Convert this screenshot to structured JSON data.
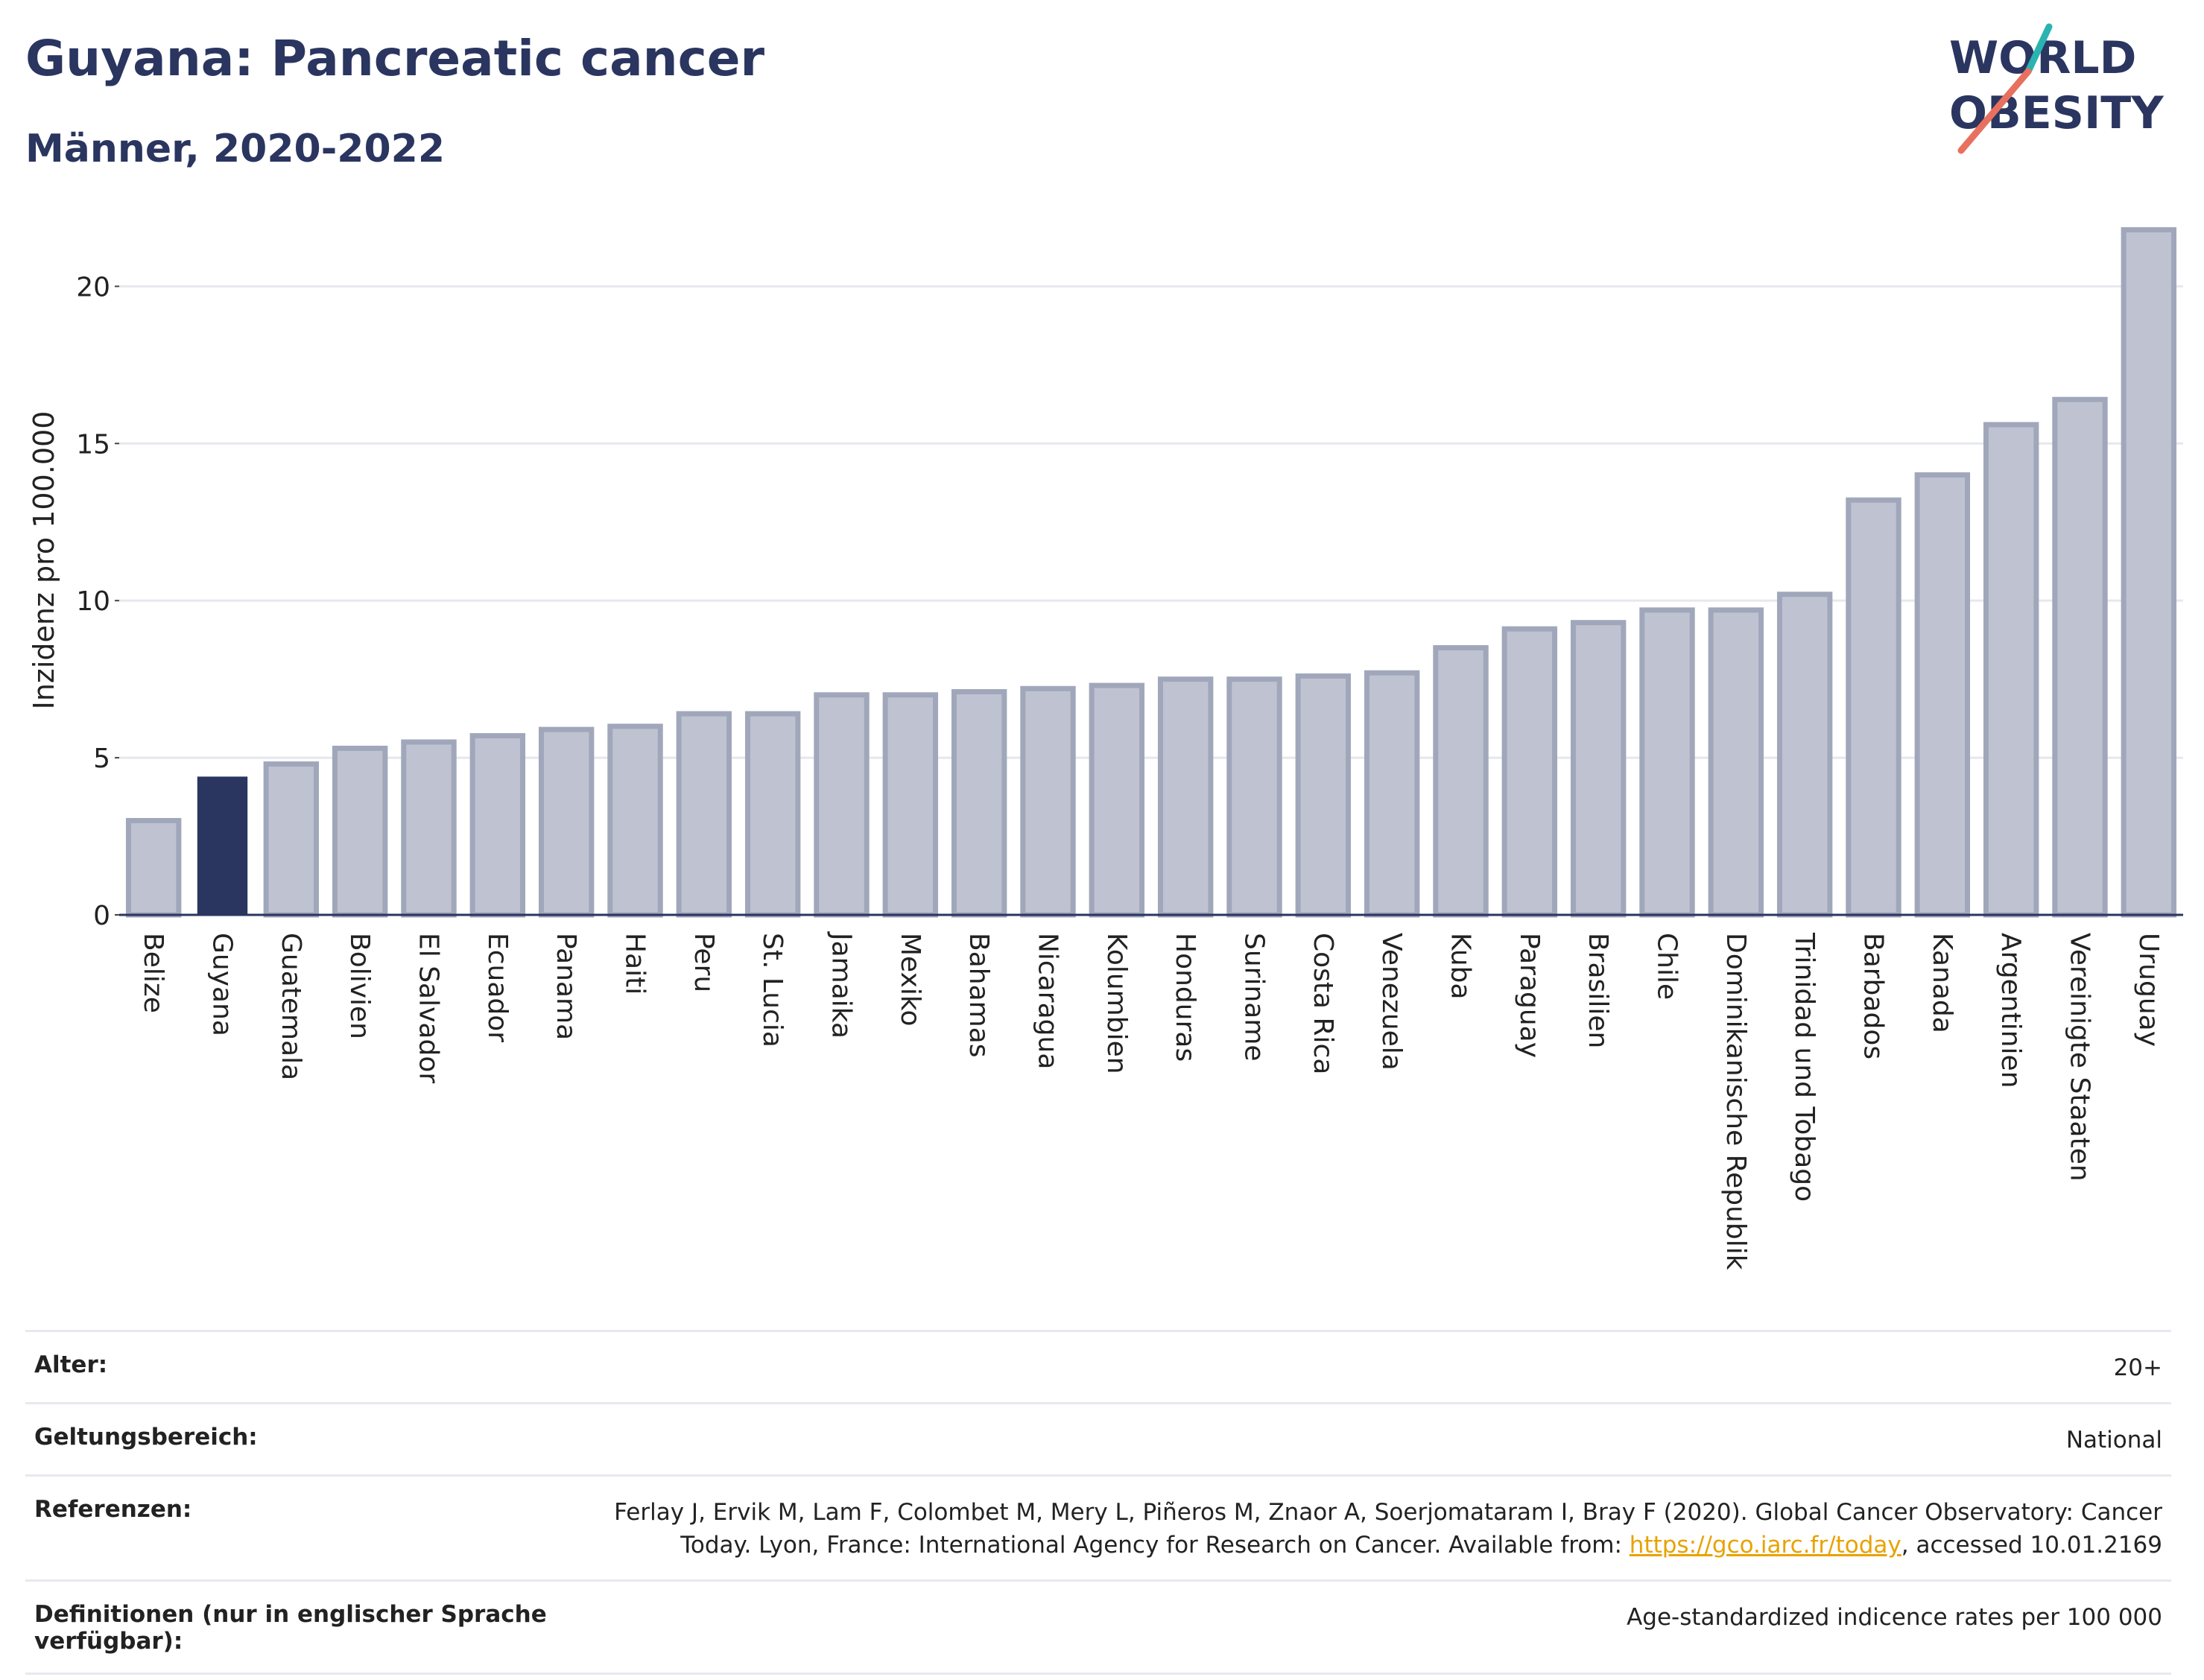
{
  "header": {
    "title": "Guyana: Pancreatic cancer",
    "subtitle": "Männer, 2020-2022"
  },
  "logo": {
    "line1": "WORLD",
    "line2": "OBESITY"
  },
  "colors": {
    "highlight": "#2a3560",
    "bar_fill": "#bfc3d1",
    "bar_stroke": "#a1a7bb",
    "title": "#2a3560",
    "logo_accent_teal": "#2ab3b1",
    "logo_accent_red": "#e8705f"
  },
  "chart_data": {
    "type": "bar",
    "ylabel": "Inzidenz pro 100.000",
    "xlabel": "",
    "ylim": [
      0,
      22
    ],
    "yticks": [
      0,
      5,
      10,
      15,
      20
    ],
    "grid": true,
    "highlight_category": "Guyana",
    "categories": [
      "Belize",
      "Guyana",
      "Guatemala",
      "Bolivien",
      "El Salvador",
      "Ecuador",
      "Panama",
      "Haiti",
      "Peru",
      "St. Lucia",
      "Jamaika",
      "Mexiko",
      "Bahamas",
      "Nicaragua",
      "Kolumbien",
      "Honduras",
      "Suriname",
      "Costa Rica",
      "Venezuela",
      "Kuba",
      "Paraguay",
      "Brasilien",
      "Chile",
      "Dominikanische Republik",
      "Trinidad und Tobago",
      "Barbados",
      "Kanada",
      "Argentinien",
      "Vereinigte Staaten",
      "Uruguay"
    ],
    "values": [
      3.0,
      4.4,
      4.8,
      5.3,
      5.5,
      5.7,
      5.9,
      6.0,
      6.4,
      6.4,
      7.0,
      7.0,
      7.1,
      7.2,
      7.3,
      7.5,
      7.5,
      7.6,
      7.7,
      8.5,
      9.1,
      9.3,
      9.7,
      9.7,
      10.2,
      13.2,
      14.0,
      15.6,
      16.4,
      21.8
    ]
  },
  "meta": {
    "rows": [
      {
        "label": "Alter:",
        "value": "20+"
      },
      {
        "label": "Geltungsbereich:",
        "value": "National"
      },
      {
        "label": "Definitionen (nur in englischer Sprache verfügbar):",
        "value": "Age-standardized indicence rates per 100 000"
      }
    ],
    "reference": {
      "label": "Referenzen:",
      "text_before": "Ferlay J, Ervik M, Lam F, Colombet M, Mery L, Piñeros M, Znaor A, Soerjomataram I, Bray F (2020). Global Cancer Observatory: Cancer Today. Lyon, France: International Agency for Research on Cancer. Available from: ",
      "link": "https://gco.iarc.fr/today",
      "text_after": ", accessed 10.01.2169"
    }
  }
}
